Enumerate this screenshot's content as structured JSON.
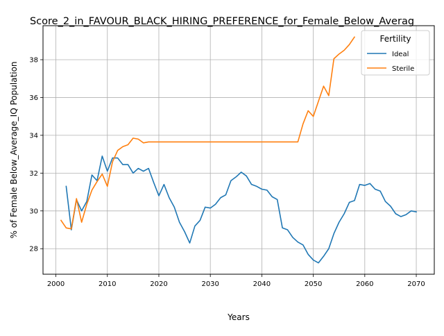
{
  "chart_data": {
    "type": "line",
    "title": "Score_2_in_FAVOUR_BLACK_HIRING_PREFERENCE_for_Female_Below_Averag",
    "xlabel": "Years",
    "ylabel": "% of Female Below_Average_IQ Population",
    "xlim": [
      1997.5,
      2073.5
    ],
    "ylim": [
      26.65,
      39.8
    ],
    "xticks": [
      2000,
      2010,
      2020,
      2030,
      2040,
      2050,
      2060,
      2070
    ],
    "yticks": [
      28,
      30,
      32,
      34,
      36,
      38
    ],
    "grid": true,
    "legend": {
      "title": "Fertility",
      "placement": "top-right"
    },
    "series": [
      {
        "name": "Ideal",
        "color": "#1f77b4",
        "x": [
          2002,
          2003,
          2004,
          2005,
          2006,
          2007,
          2008,
          2009,
          2010,
          2011,
          2012,
          2013,
          2014,
          2015,
          2016,
          2017,
          2018,
          2019,
          2020,
          2021,
          2022,
          2023,
          2024,
          2025,
          2026,
          2027,
          2028,
          2029,
          2030,
          2031,
          2032,
          2033,
          2034,
          2035,
          2036,
          2037,
          2038,
          2039,
          2040,
          2041,
          2042,
          2043,
          2044,
          2045,
          2046,
          2047,
          2048,
          2049,
          2050,
          2051,
          2052,
          2053,
          2054,
          2055,
          2056,
          2057,
          2058,
          2059,
          2060,
          2061,
          2062,
          2063,
          2064,
          2065,
          2066,
          2067,
          2068,
          2069,
          2070
        ],
        "values": [
          31.3,
          29.0,
          30.6,
          30.0,
          30.5,
          31.9,
          31.6,
          32.9,
          32.1,
          32.8,
          32.8,
          32.45,
          32.45,
          32.0,
          32.25,
          32.1,
          32.25,
          31.5,
          30.8,
          31.4,
          30.7,
          30.2,
          29.4,
          28.9,
          28.3,
          29.2,
          29.5,
          30.2,
          30.15,
          30.35,
          30.7,
          30.85,
          31.6,
          31.8,
          32.05,
          31.85,
          31.4,
          31.3,
          31.15,
          31.1,
          30.75,
          30.6,
          29.1,
          29.0,
          28.6,
          28.35,
          28.2,
          27.7,
          27.4,
          27.25,
          27.6,
          28.0,
          28.8,
          29.4,
          29.85,
          30.45,
          30.55,
          31.4,
          31.35,
          31.45,
          31.15,
          31.05,
          30.5,
          30.25,
          29.85,
          29.7,
          29.8,
          30.0,
          29.95
        ]
      },
      {
        "name": "Sterile",
        "color": "#ff7f0e",
        "x": [
          2001,
          2002,
          2003,
          2004,
          2005,
          2006,
          2007,
          2008,
          2009,
          2010,
          2011,
          2012,
          2013,
          2014,
          2015,
          2016,
          2017,
          2018,
          2019,
          2020,
          2021,
          2022,
          2023,
          2024,
          2025,
          2026,
          2027,
          2028,
          2029,
          2030,
          2031,
          2032,
          2033,
          2034,
          2035,
          2036,
          2037,
          2038,
          2039,
          2040,
          2041,
          2042,
          2043,
          2044,
          2045,
          2046,
          2047,
          2048,
          2049,
          2050,
          2051,
          2052,
          2053,
          2054,
          2055,
          2056,
          2057,
          2058
        ],
        "values": [
          29.5,
          29.1,
          29.05,
          30.65,
          29.4,
          30.35,
          31.1,
          31.55,
          31.95,
          31.3,
          32.6,
          33.2,
          33.4,
          33.5,
          33.85,
          33.8,
          33.6,
          33.65,
          33.65,
          33.65,
          33.65,
          33.65,
          33.65,
          33.65,
          33.65,
          33.65,
          33.65,
          33.65,
          33.65,
          33.65,
          33.65,
          33.65,
          33.65,
          33.65,
          33.65,
          33.65,
          33.65,
          33.65,
          33.65,
          33.65,
          33.65,
          33.65,
          33.65,
          33.65,
          33.65,
          33.65,
          33.65,
          34.6,
          35.3,
          35.0,
          35.8,
          36.6,
          36.1,
          38.05,
          38.3,
          38.5,
          38.8,
          39.2
        ]
      }
    ]
  }
}
